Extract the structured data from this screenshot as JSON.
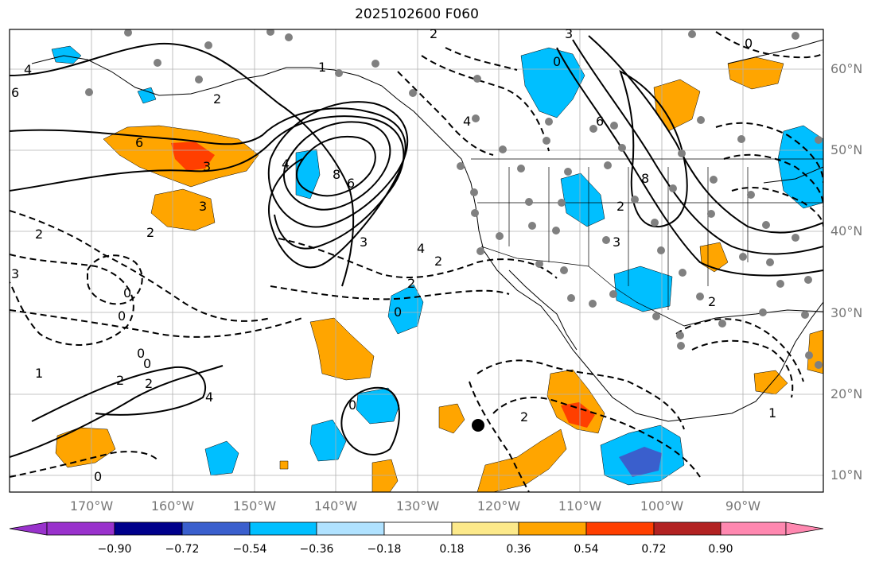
{
  "title": "2025102600 F060",
  "latitude_labels": [
    "60°N",
    "50°N",
    "40°N",
    "30°N",
    "20°N",
    "10°N"
  ],
  "longitude_labels": [
    "170°W",
    "160°W",
    "150°W",
    "140°W",
    "130°W",
    "120°W",
    "110°W",
    "100°W",
    "90°W"
  ],
  "colorbar": {
    "ticks": [
      "−0.90",
      "−0.72",
      "−0.54",
      "−0.36",
      "−0.18",
      "0.18",
      "0.36",
      "0.54",
      "0.72",
      "0.90"
    ],
    "colors": [
      "#9932cc",
      "#00008b",
      "#3a5fcd",
      "#00bfff",
      "#b0e2ff",
      "#ffffff",
      "#fce98a",
      "#ffa500",
      "#ff3f00",
      "#b22222",
      "#ff88b0"
    ]
  },
  "contour_labels": [
    "4",
    "6",
    "2",
    "6",
    "3",
    "3",
    "4",
    "8",
    "6",
    "2",
    "0",
    "3",
    "4",
    "0",
    "0",
    "4",
    "2",
    "6",
    "8",
    "2",
    "3",
    "3",
    "2",
    "0",
    "2",
    "2",
    "0",
    "0",
    "1",
    "2",
    "4",
    "2",
    "0",
    "3",
    "2",
    "1",
    "1",
    "0",
    "2",
    "0"
  ]
}
